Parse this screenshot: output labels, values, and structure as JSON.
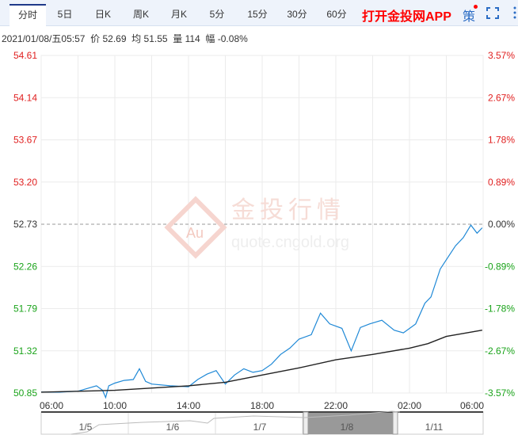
{
  "tabs": [
    {
      "label": "分时",
      "active": true
    },
    {
      "label": "5日"
    },
    {
      "label": "日K"
    },
    {
      "label": "周K"
    },
    {
      "label": "月K"
    },
    {
      "label": "5分"
    },
    {
      "label": "15分"
    },
    {
      "label": "30分"
    },
    {
      "label": "60分"
    }
  ],
  "app_link": "打开金投网APP",
  "strategy_label": "策",
  "info": {
    "datetime": "2021/01/08/五05:57",
    "price_label": "价",
    "price": "52.69",
    "avg_label": "均",
    "avg": "51.55",
    "vol_label": "量",
    "vol": "114",
    "chg_label": "幅",
    "chg": "-0.08%"
  },
  "watermark": {
    "text": "金投行情",
    "url": "quote.cngold.org"
  },
  "colors": {
    "up": "#e02020",
    "down": "#1aa31a",
    "price_line": "#1e88d6",
    "avg_line": "#222222",
    "accent": "#1f3a8a"
  },
  "chart_data": {
    "type": "line",
    "ylim": [
      50.85,
      54.61
    ],
    "prev_close": 52.73,
    "y_ticks": [
      "54.61",
      "54.14",
      "53.67",
      "53.20",
      "52.73",
      "52.26",
      "51.79",
      "51.32",
      "50.85"
    ],
    "pct_ticks": [
      "3.57%",
      "2.67%",
      "1.78%",
      "0.89%",
      "0.00%",
      "-0.89%",
      "-1.78%",
      "-2.67%",
      "-3.57%"
    ],
    "x_ticks": [
      "06:00",
      "10:00",
      "14:00",
      "18:00",
      "22:00",
      "02:00",
      "06:00"
    ],
    "grid": true,
    "series": [
      {
        "role": "price",
        "points": [
          [
            "06:00",
            50.86
          ],
          [
            "07:00",
            50.86
          ],
          [
            "08:00",
            50.87
          ],
          [
            "08:30",
            50.9
          ],
          [
            "09:00",
            50.93
          ],
          [
            "09:20",
            50.88
          ],
          [
            "09:30",
            50.8
          ],
          [
            "09:40",
            50.93
          ],
          [
            "10:00",
            50.96
          ],
          [
            "10:30",
            50.99
          ],
          [
            "11:00",
            51.0
          ],
          [
            "11:20",
            51.12
          ],
          [
            "11:40",
            50.98
          ],
          [
            "12:00",
            50.95
          ],
          [
            "13:00",
            50.93
          ],
          [
            "14:00",
            50.92
          ],
          [
            "14:30",
            51.0
          ],
          [
            "15:00",
            51.06
          ],
          [
            "15:30",
            51.1
          ],
          [
            "16:00",
            50.95
          ],
          [
            "16:30",
            51.05
          ],
          [
            "17:00",
            51.12
          ],
          [
            "17:30",
            51.08
          ],
          [
            "18:00",
            51.1
          ],
          [
            "18:30",
            51.17
          ],
          [
            "19:00",
            51.28
          ],
          [
            "19:30",
            51.35
          ],
          [
            "20:00",
            51.45
          ],
          [
            "20:40",
            51.5
          ],
          [
            "21:10",
            51.74
          ],
          [
            "21:40",
            51.62
          ],
          [
            "22:20",
            51.57
          ],
          [
            "22:50",
            51.32
          ],
          [
            "23:20",
            51.58
          ],
          [
            "23:50",
            51.62
          ],
          [
            "00:30",
            51.66
          ],
          [
            "01:10",
            51.55
          ],
          [
            "01:40",
            51.52
          ],
          [
            "02:20",
            51.62
          ],
          [
            "02:50",
            51.85
          ],
          [
            "03:10",
            51.92
          ],
          [
            "03:40",
            52.23
          ],
          [
            "04:05",
            52.36
          ],
          [
            "04:30",
            52.49
          ],
          [
            "04:55",
            52.58
          ],
          [
            "05:20",
            52.72
          ],
          [
            "05:40",
            52.63
          ],
          [
            "05:57",
            52.69
          ]
        ]
      },
      {
        "role": "average",
        "points": [
          [
            "06:00",
            50.86
          ],
          [
            "10:00",
            50.88
          ],
          [
            "14:00",
            50.93
          ],
          [
            "16:00",
            50.97
          ],
          [
            "18:00",
            51.05
          ],
          [
            "20:00",
            51.13
          ],
          [
            "22:00",
            51.22
          ],
          [
            "00:00",
            51.28
          ],
          [
            "02:00",
            51.35
          ],
          [
            "03:00",
            51.4
          ],
          [
            "04:00",
            51.48
          ],
          [
            "05:57",
            51.55
          ]
        ]
      }
    ]
  },
  "navigator": {
    "labels": [
      "1/5",
      "1/6",
      "1/7",
      "1/8",
      "1/11"
    ],
    "selected": "1/8"
  }
}
